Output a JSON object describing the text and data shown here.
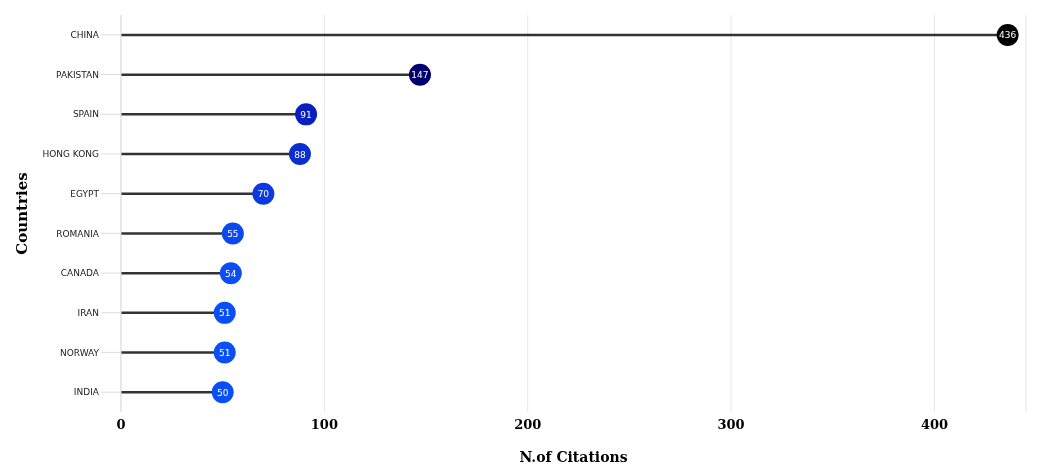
{
  "chart_data": {
    "type": "lollipop",
    "orientation": "horizontal",
    "xlabel": "N.of Citations",
    "ylabel": "Countries",
    "categories": [
      "CHINA",
      "PAKISTAN",
      "SPAIN",
      "HONG KONG",
      "EGYPT",
      "ROMANIA",
      "CANADA",
      "IRAN",
      "NORWAY",
      "INDIA"
    ],
    "values": [
      436,
      147,
      91,
      88,
      70,
      55,
      54,
      51,
      51,
      50
    ],
    "colors": [
      "#000000",
      "#00006e",
      "#0a1fc0",
      "#0a2ed0",
      "#0a3ae0",
      "#0a48f0",
      "#0a4ff5",
      "#0a4ff5",
      "#0a4ff5",
      "#0a4ff5"
    ],
    "xlim": [
      0,
      445
    ],
    "xticks": [
      0,
      100,
      200,
      300,
      400
    ],
    "grid": "x",
    "data_labels": true
  }
}
